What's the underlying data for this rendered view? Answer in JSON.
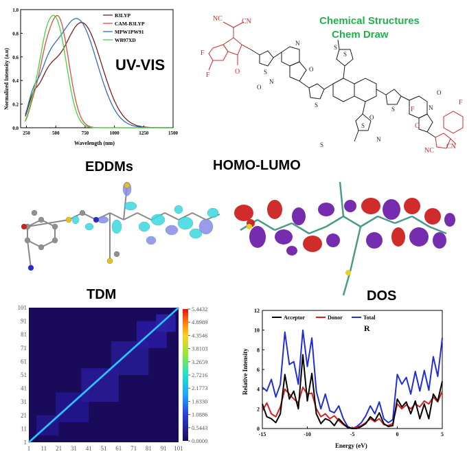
{
  "uvvis": {
    "label": "UV-VIS",
    "ylabel": "Normalized Intensity (a.u)",
    "xlabel": "Wavelength (nm)",
    "xticks": [
      "250",
      "500",
      "750",
      "1000",
      "1250",
      "1500"
    ],
    "yticks": [
      "0.0",
      "0.2",
      "0.4",
      "0.6",
      "0.8",
      "1.0"
    ],
    "legend": [
      {
        "name": "B3LYP",
        "color": "#7a1c1c"
      },
      {
        "name": "CAM-B3LYP",
        "color": "#e5473f"
      },
      {
        "name": "MPW1PW91",
        "color": "#2e6fc2"
      },
      {
        "name": "WB97XD",
        "color": "#3fd43f"
      }
    ]
  },
  "chem": {
    "title_line1": "Chemical Structures",
    "title_line2": "Chem Draw",
    "title_color": "#21b24b",
    "atoms_red": [
      "NC",
      "CN",
      "F",
      "F",
      "O",
      "F",
      "F",
      "O",
      "NC",
      "CN"
    ],
    "atoms_black": [
      "N",
      "O",
      "O",
      "N",
      "S",
      "S",
      "S",
      "S",
      "S",
      "S",
      "S",
      "N",
      "O",
      "O",
      "N"
    ]
  },
  "eddm": {
    "label": "EDDMs"
  },
  "homo_lumo": {
    "label": "HOMO-LUMO"
  },
  "tdm": {
    "label": "TDM",
    "axis_ticks": [
      "1",
      "11",
      "21",
      "31",
      "41",
      "51",
      "61",
      "71",
      "81",
      "91",
      "101"
    ],
    "colorbar_ticks": [
      "5.4432",
      "4.8989",
      "4.3546",
      "3.8103",
      "3.2659",
      "2.7216",
      "2.1773",
      "1.6330",
      "1.0886",
      "0.5443",
      "0.0000"
    ]
  },
  "dos": {
    "label": "DOS",
    "panel_label": "R",
    "xlabel": "Energy (eV)",
    "ylabel": "Relative Intensity",
    "xticks": [
      "-15",
      "-10",
      "-5",
      "0",
      "5"
    ],
    "yticks": [
      "0",
      "2",
      "4",
      "6",
      "8",
      "10",
      "12"
    ],
    "legend": [
      {
        "name": "Acceptor",
        "color": "#000000"
      },
      {
        "name": "Donor",
        "color": "#d42020"
      },
      {
        "name": "Total",
        "color": "#1f2fd4"
      }
    ]
  },
  "chart_data": [
    {
      "type": "line",
      "title": "UV-VIS",
      "xlabel": "Wavelength (nm)",
      "ylabel": "Normalized Intensity (a.u)",
      "xlim": [
        200,
        1500
      ],
      "ylim": [
        0,
        1.0
      ],
      "series": [
        {
          "name": "B3LYP",
          "peak": 720,
          "height": 0.89
        },
        {
          "name": "CAM-B3LYP",
          "peak": 520,
          "height": 0.93
        },
        {
          "name": "MPW1PW91",
          "peak": 680,
          "height": 0.92
        },
        {
          "name": "WB97XD",
          "peak": 500,
          "height": 0.9
        }
      ]
    },
    {
      "type": "heatmap",
      "title": "TDM",
      "x_range": [
        1,
        101
      ],
      "y_range": [
        1,
        101
      ],
      "color_range": [
        0.0,
        5.4432
      ]
    },
    {
      "type": "line",
      "title": "DOS",
      "xlabel": "Energy (eV)",
      "ylabel": "Relative Intensity",
      "xlim": [
        -15,
        5
      ],
      "ylim": [
        0,
        12
      ],
      "series": [
        {
          "name": "Acceptor",
          "x": [
            -15,
            -14.5,
            -14,
            -13.5,
            -13,
            -12.5,
            -12,
            -11.5,
            -11,
            -10.5,
            -10,
            -9.5,
            -9,
            -8.5,
            -8,
            -7.5,
            -7,
            -6.5,
            -6,
            -5.5,
            -5,
            -4.5,
            -4,
            -3.5,
            -3,
            -2.5,
            -2,
            -1.5,
            -1,
            -0.5,
            0,
            0.5,
            1,
            1.5,
            2,
            2.5,
            3,
            3.5,
            4,
            4.5,
            5
          ],
          "y": [
            2.5,
            1.2,
            1.0,
            0.6,
            1.5,
            5.5,
            3.0,
            3.8,
            2.0,
            7.5,
            2.8,
            5.6,
            1.5,
            0.5,
            1.0,
            0.8,
            0.3,
            1.0,
            0.5,
            0.1,
            0.0,
            0.0,
            0.2,
            0.5,
            1.2,
            0.8,
            1.6,
            0.5,
            0.2,
            0.3,
            3.0,
            2.2,
            2.7,
            1.5,
            2.8,
            1.0,
            2.5,
            1.0,
            3.5,
            2.8,
            4.8
          ]
        },
        {
          "name": "Donor",
          "x": [
            -15,
            -14.5,
            -14,
            -13.5,
            -13,
            -12.5,
            -12,
            -11.5,
            -11,
            -10.5,
            -10,
            -9.5,
            -9,
            -8.5,
            -8,
            -7.5,
            -7,
            -6.5,
            -6,
            -5.5,
            -5,
            -4.5,
            -4,
            -3.5,
            -3,
            -2.5,
            -2,
            -1.5,
            -1,
            -0.5,
            0,
            0.5,
            1,
            1.5,
            2,
            2.5,
            3,
            3.5,
            4,
            4.5,
            5
          ],
          "y": [
            1.8,
            2.6,
            1.5,
            1.2,
            2.2,
            4.0,
            3.5,
            3.0,
            2.6,
            4.2,
            3.5,
            3.6,
            2.0,
            1.2,
            1.5,
            1.0,
            1.3,
            0.8,
            0.4,
            0.1,
            0.0,
            0.1,
            0.3,
            0.6,
            1.0,
            0.7,
            1.0,
            0.4,
            0.3,
            0.5,
            2.5,
            2.0,
            2.4,
            2.0,
            2.5,
            2.2,
            2.8,
            2.5,
            3.2,
            2.7,
            3.8
          ]
        },
        {
          "name": "Total",
          "x": [
            -15,
            -14.5,
            -14,
            -13.5,
            -13,
            -12.5,
            -12,
            -11.5,
            -11,
            -10.5,
            -10,
            -9.5,
            -9,
            -8.5,
            -8,
            -7.5,
            -7,
            -6.5,
            -6,
            -5.5,
            -5,
            -4.5,
            -4,
            -3.5,
            -3,
            -2.5,
            -2,
            -1.5,
            -1,
            -0.5,
            0,
            0.5,
            1,
            1.5,
            2,
            2.5,
            3,
            3.5,
            4,
            4.5,
            5
          ],
          "y": [
            4.2,
            3.8,
            5.0,
            3.2,
            4.5,
            9.8,
            6.5,
            6.8,
            4.5,
            10.0,
            6.3,
            9.2,
            3.8,
            2.0,
            3.5,
            1.8,
            1.6,
            2.3,
            1.0,
            0.2,
            0.0,
            0.2,
            0.6,
            1.3,
            2.3,
            1.5,
            2.7,
            1.0,
            0.6,
            0.9,
            5.5,
            4.5,
            5.2,
            3.5,
            5.8,
            3.8,
            5.9,
            3.9,
            7.3,
            5.3,
            9.2
          ]
        }
      ]
    }
  ]
}
